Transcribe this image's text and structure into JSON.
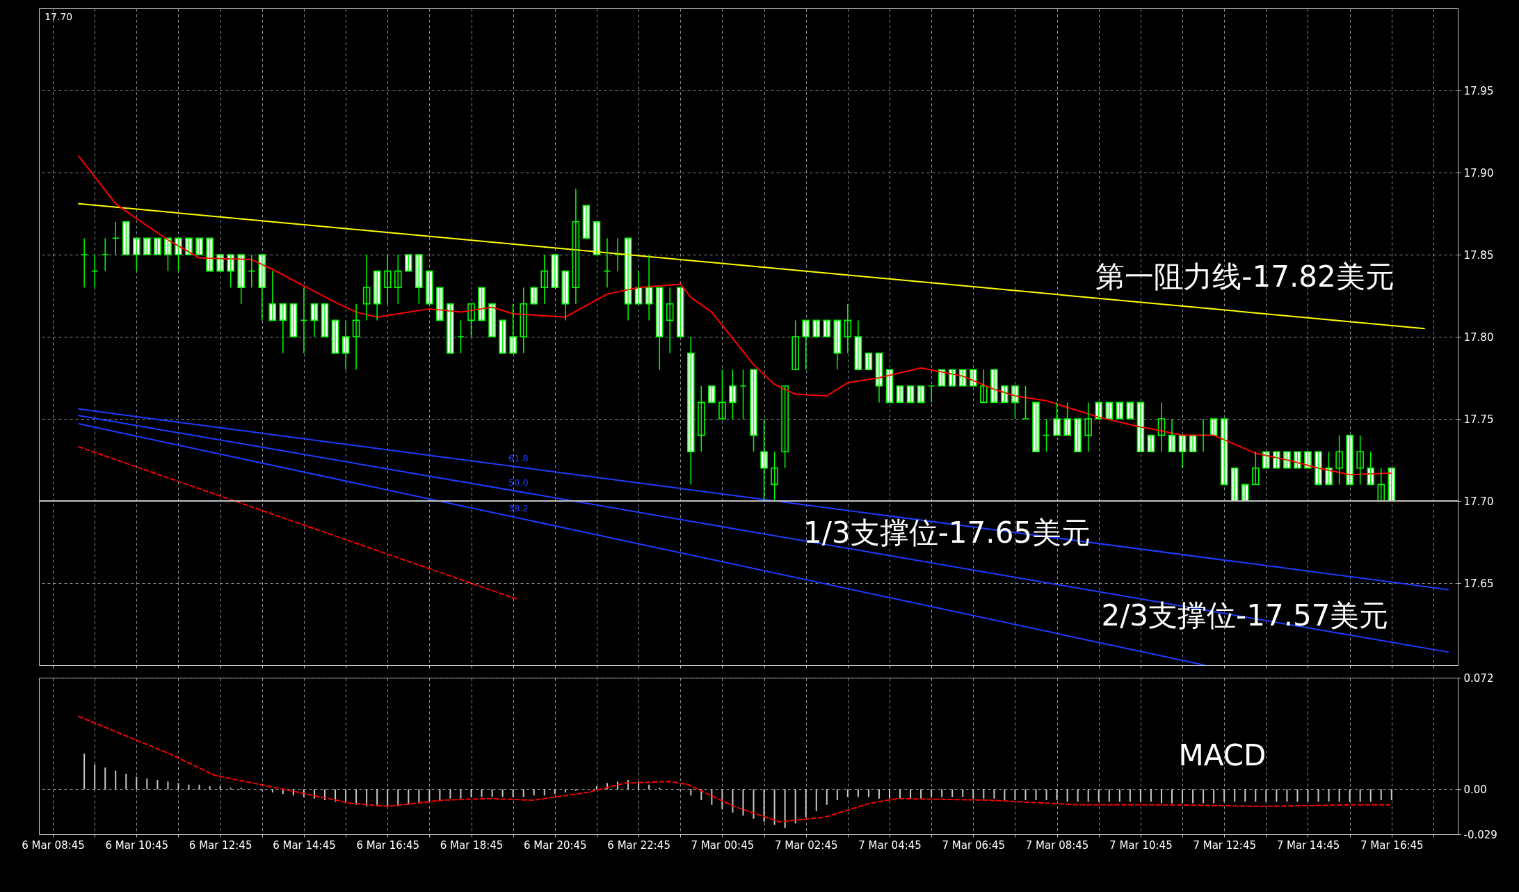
{
  "chart_data": [
    {
      "type": "candlestick",
      "x": [
        "--03-06T09:30",
        "--03-06T09:45",
        "--03-06T10:00",
        "--03-06T10:15",
        "--03-06T10:30",
        "--03-06T10:45",
        "--03-06T11:00",
        "--03-06T11:15",
        "--03-06T11:30",
        "--03-06T11:45",
        "--03-06T12:00",
        "--03-06T12:15",
        "--03-06T12:30",
        "--03-06T12:45",
        "--03-06T13:00",
        "--03-06T13:15",
        "--03-06T13:30",
        "--03-06T13:45",
        "--03-06T14:00",
        "--03-06T14:15",
        "--03-06T14:30",
        "--03-06T14:45",
        "--03-06T15:00",
        "--03-06T15:15",
        "--03-06T15:30",
        "--03-06T15:45",
        "--03-06T16:00",
        "--03-06T16:15",
        "--03-06T16:30",
        "--03-06T16:45",
        "--03-06T17:00",
        "--03-06T17:15",
        "--03-06T17:30",
        "--03-06T17:45",
        "--03-06T18:00",
        "--03-06T18:15",
        "--03-06T18:30",
        "--03-06T18:45",
        "--03-06T19:00",
        "--03-06T19:15",
        "--03-06T19:30",
        "--03-06T19:45",
        "--03-06T20:00",
        "--03-06T20:15",
        "--03-06T20:30",
        "--03-06T20:45",
        "--03-06T21:00",
        "--03-06T21:15",
        "--03-06T21:30",
        "--03-06T21:45",
        "--03-06T22:00",
        "--03-06T22:15",
        "--03-06T22:30",
        "--03-06T22:45",
        "--03-06T23:00",
        "--03-06T23:15",
        "--03-06T23:30",
        "--03-06T23:45",
        "--03-07T00:00",
        "--03-07T00:15",
        "--03-07T00:30",
        "--03-07T00:45",
        "--03-07T01:00",
        "--03-07T01:15",
        "--03-07T01:30",
        "--03-07T01:45",
        "--03-07T02:00",
        "--03-07T02:15",
        "--03-07T02:30",
        "--03-07T02:45",
        "--03-07T03:00",
        "--03-07T03:15",
        "--03-07T03:30",
        "--03-07T03:45",
        "--03-07T04:00",
        "--03-07T04:15",
        "--03-07T04:30",
        "--03-07T04:45",
        "--03-07T05:00",
        "--03-07T05:15",
        "--03-07T05:30",
        "--03-07T05:45",
        "--03-07T06:00",
        "--03-07T06:15",
        "--03-07T06:30",
        "--03-07T06:45",
        "--03-07T07:00",
        "--03-07T07:15",
        "--03-07T07:30",
        "--03-07T07:45",
        "--03-07T08:00",
        "--03-07T08:15",
        "--03-07T08:30",
        "--03-07T08:45",
        "--03-07T09:00",
        "--03-07T09:15",
        "--03-07T09:30",
        "--03-07T09:45",
        "--03-07T10:00",
        "--03-07T10:15",
        "--03-07T10:30",
        "--03-07T10:45",
        "--03-07T11:00",
        "--03-07T11:15",
        "--03-07T11:30",
        "--03-07T11:45",
        "--03-07T12:00",
        "--03-07T12:15",
        "--03-07T12:30",
        "--03-07T12:45",
        "--03-07T13:00",
        "--03-07T13:15",
        "--03-07T13:30",
        "--03-07T13:45",
        "--03-07T14:00",
        "--03-07T14:15",
        "--03-07T14:30",
        "--03-07T14:45",
        "--03-07T15:00",
        "--03-07T15:15",
        "--03-07T15:30",
        "--03-07T15:45",
        "--03-07T16:00",
        "--03-07T16:15",
        "--03-07T16:30",
        "--03-07T16:45"
      ],
      "series": [
        {
          "color": "#00ff00",
          "ohlc": [
            [
              17.85,
              17.86,
              17.83,
              17.85
            ],
            [
              17.84,
              17.85,
              17.83,
              17.84
            ],
            [
              17.85,
              17.86,
              17.84,
              17.85
            ],
            [
              17.86,
              17.87,
              17.85,
              17.86
            ],
            [
              17.87,
              17.87,
              17.85,
              17.85
            ],
            [
              17.86,
              17.86,
              17.84,
              17.85
            ],
            [
              17.86,
              17.86,
              17.85,
              17.85
            ],
            [
              17.86,
              17.86,
              17.85,
              17.85
            ],
            [
              17.86,
              17.86,
              17.84,
              17.85
            ],
            [
              17.86,
              17.86,
              17.84,
              17.85
            ],
            [
              17.86,
              17.86,
              17.85,
              17.85
            ],
            [
              17.86,
              17.86,
              17.85,
              17.85
            ],
            [
              17.86,
              17.86,
              17.84,
              17.84
            ],
            [
              17.85,
              17.85,
              17.84,
              17.84
            ],
            [
              17.85,
              17.85,
              17.83,
              17.84
            ],
            [
              17.85,
              17.85,
              17.82,
              17.83
            ],
            [
              17.84,
              17.85,
              17.83,
              17.84
            ],
            [
              17.85,
              17.85,
              17.81,
              17.83
            ],
            [
              17.82,
              17.84,
              17.81,
              17.81
            ],
            [
              17.82,
              17.82,
              17.79,
              17.81
            ],
            [
              17.82,
              17.82,
              17.8,
              17.8
            ],
            [
              17.81,
              17.83,
              17.79,
              17.81
            ],
            [
              17.82,
              17.82,
              17.8,
              17.81
            ],
            [
              17.82,
              17.82,
              17.8,
              17.8
            ],
            [
              17.81,
              17.81,
              17.79,
              17.79
            ],
            [
              17.8,
              17.81,
              17.78,
              17.79
            ],
            [
              17.8,
              17.82,
              17.78,
              17.81
            ],
            [
              17.82,
              17.85,
              17.81,
              17.83
            ],
            [
              17.84,
              17.84,
              17.81,
              17.82
            ],
            [
              17.83,
              17.85,
              17.82,
              17.84
            ],
            [
              17.83,
              17.85,
              17.82,
              17.84
            ],
            [
              17.85,
              17.85,
              17.84,
              17.84
            ],
            [
              17.85,
              17.85,
              17.82,
              17.83
            ],
            [
              17.84,
              17.84,
              17.82,
              17.82
            ],
            [
              17.83,
              17.83,
              17.81,
              17.81
            ],
            [
              17.82,
              17.82,
              17.79,
              17.79
            ],
            [
              17.8,
              17.81,
              17.79,
              17.8
            ],
            [
              17.81,
              17.82,
              17.8,
              17.82
            ],
            [
              17.83,
              17.83,
              17.81,
              17.81
            ],
            [
              17.82,
              17.82,
              17.8,
              17.8
            ],
            [
              17.81,
              17.81,
              17.79,
              17.79
            ],
            [
              17.8,
              17.82,
              17.79,
              17.79
            ],
            [
              17.8,
              17.83,
              17.79,
              17.82
            ],
            [
              17.83,
              17.83,
              17.82,
              17.82
            ],
            [
              17.83,
              17.85,
              17.82,
              17.84
            ],
            [
              17.85,
              17.85,
              17.83,
              17.83
            ],
            [
              17.84,
              17.84,
              17.81,
              17.82
            ],
            [
              17.83,
              17.89,
              17.82,
              17.87
            ],
            [
              17.88,
              17.88,
              17.86,
              17.86
            ],
            [
              17.87,
              17.87,
              17.85,
              17.85
            ],
            [
              17.84,
              17.86,
              17.83,
              17.84
            ],
            [
              17.85,
              17.86,
              17.84,
              17.85
            ],
            [
              17.86,
              17.86,
              17.81,
              17.82
            ],
            [
              17.83,
              17.84,
              17.82,
              17.82
            ],
            [
              17.83,
              17.85,
              17.81,
              17.82
            ],
            [
              17.83,
              17.83,
              17.78,
              17.8
            ],
            [
              17.81,
              17.83,
              17.79,
              17.82
            ],
            [
              17.83,
              17.83,
              17.8,
              17.8
            ],
            [
              17.79,
              17.8,
              17.71,
              17.73
            ],
            [
              17.74,
              17.77,
              17.73,
              17.76
            ],
            [
              17.77,
              17.77,
              17.76,
              17.76
            ],
            [
              17.75,
              17.78,
              17.75,
              17.76
            ],
            [
              17.77,
              17.78,
              17.75,
              17.76
            ],
            [
              17.77,
              17.78,
              17.75,
              17.77
            ],
            [
              17.78,
              17.78,
              17.73,
              17.74
            ],
            [
              17.73,
              17.75,
              17.7,
              17.72
            ],
            [
              17.71,
              17.73,
              17.7,
              17.72
            ],
            [
              17.73,
              17.77,
              17.72,
              17.77
            ],
            [
              17.78,
              17.81,
              17.78,
              17.8
            ],
            [
              17.81,
              17.81,
              17.78,
              17.8
            ],
            [
              17.81,
              17.81,
              17.8,
              17.8
            ],
            [
              17.81,
              17.81,
              17.8,
              17.8
            ],
            [
              17.81,
              17.81,
              17.78,
              17.79
            ],
            [
              17.8,
              17.82,
              17.79,
              17.81
            ],
            [
              17.8,
              17.81,
              17.78,
              17.78
            ],
            [
              17.79,
              17.79,
              17.78,
              17.78
            ],
            [
              17.79,
              17.79,
              17.76,
              17.77
            ],
            [
              17.78,
              17.78,
              17.76,
              17.76
            ],
            [
              17.77,
              17.77,
              17.76,
              17.76
            ],
            [
              17.77,
              17.77,
              17.76,
              17.76
            ],
            [
              17.77,
              17.77,
              17.76,
              17.76
            ],
            [
              17.77,
              17.77,
              17.76,
              17.77
            ],
            [
              17.78,
              17.78,
              17.77,
              17.77
            ],
            [
              17.78,
              17.78,
              17.77,
              17.77
            ],
            [
              17.78,
              17.78,
              17.77,
              17.77
            ],
            [
              17.78,
              17.78,
              17.77,
              17.77
            ],
            [
              17.76,
              17.78,
              17.76,
              17.77
            ],
            [
              17.78,
              17.78,
              17.76,
              17.76
            ],
            [
              17.77,
              17.77,
              17.76,
              17.76
            ],
            [
              17.77,
              17.77,
              17.75,
              17.76
            ],
            [
              17.75,
              17.77,
              17.75,
              17.75
            ],
            [
              17.76,
              17.76,
              17.73,
              17.73
            ],
            [
              17.74,
              17.75,
              17.73,
              17.74
            ],
            [
              17.75,
              17.76,
              17.74,
              17.74
            ],
            [
              17.75,
              17.76,
              17.74,
              17.74
            ],
            [
              17.75,
              17.75,
              17.73,
              17.73
            ],
            [
              17.74,
              17.76,
              17.73,
              17.75
            ],
            [
              17.76,
              17.76,
              17.75,
              17.75
            ],
            [
              17.76,
              17.76,
              17.75,
              17.75
            ],
            [
              17.76,
              17.76,
              17.75,
              17.75
            ],
            [
              17.76,
              17.76,
              17.75,
              17.75
            ],
            [
              17.76,
              17.76,
              17.73,
              17.73
            ],
            [
              17.74,
              17.74,
              17.73,
              17.73
            ],
            [
              17.74,
              17.76,
              17.73,
              17.75
            ],
            [
              17.74,
              17.75,
              17.73,
              17.73
            ],
            [
              17.74,
              17.74,
              17.72,
              17.73
            ],
            [
              17.74,
              17.74,
              17.73,
              17.73
            ],
            [
              17.74,
              17.75,
              17.73,
              17.74
            ],
            [
              17.75,
              17.75,
              17.74,
              17.74
            ],
            [
              17.75,
              17.75,
              17.71,
              17.71
            ],
            [
              17.72,
              17.72,
              17.7,
              17.7
            ],
            [
              17.71,
              17.71,
              17.7,
              17.7
            ],
            [
              17.71,
              17.73,
              17.71,
              17.72
            ],
            [
              17.73,
              17.73,
              17.72,
              17.72
            ],
            [
              17.73,
              17.73,
              17.72,
              17.72
            ],
            [
              17.73,
              17.73,
              17.72,
              17.72
            ],
            [
              17.73,
              17.73,
              17.72,
              17.72
            ],
            [
              17.73,
              17.73,
              17.72,
              17.72
            ],
            [
              17.73,
              17.73,
              17.71,
              17.71
            ],
            [
              17.72,
              17.73,
              17.71,
              17.71
            ],
            [
              17.72,
              17.74,
              17.71,
              17.73
            ],
            [
              17.74,
              17.74,
              17.71,
              17.71
            ],
            [
              17.72,
              17.74,
              17.71,
              17.73
            ],
            [
              17.72,
              17.73,
              17.71,
              17.71
            ],
            [
              17.7,
              17.72,
              17.7,
              17.71
            ],
            [
              17.72,
              17.72,
              17.7,
              17.7
            ]
          ]
        },
        {
          "type": "line",
          "color": "#ffff00",
          "x": [
            "--03-06T09:22",
            "--03-07T17:32"
          ],
          "values": [
            17.881,
            17.805
          ]
        },
        {
          "type": "line",
          "color": "#ff0000",
          "x": [
            "--03-06T09:22",
            "--03-06T10:15",
            "--03-06T10:45",
            "--03-06T11:30",
            "--03-06T12:15",
            "--03-06T13:30",
            "--03-06T14:00",
            "--03-06T14:45",
            "--03-06T15:30",
            "--03-06T16:00",
            "--03-06T16:30",
            "--03-06T17:00",
            "--03-06T17:45",
            "--03-06T18:30",
            "--03-06T19:15",
            "--03-06T19:45",
            "--03-06T21:00",
            "--03-06T22:00",
            "--03-06T22:45",
            "--03-06T23:45",
            "--03-07T00:00",
            "--03-07T00:30",
            "--03-07T01:00",
            "--03-07T01:30",
            "--03-07T02:00",
            "--03-07T02:30",
            "--03-07T03:15",
            "--03-07T03:45",
            "--03-07T04:30",
            "--03-07T05:30",
            "--03-07T06:30",
            "--03-07T07:15",
            "--03-07T07:45",
            "--03-07T08:30",
            "--03-07T09:15",
            "--03-07T09:45",
            "--03-07T10:45",
            "--03-07T11:00",
            "--03-07T11:45",
            "--03-07T12:30",
            "--03-07T13:30",
            "--03-07T14:15",
            "--03-07T15:00",
            "--03-07T15:45",
            "--03-07T16:45"
          ],
          "values": [
            17.91,
            17.881,
            17.872,
            17.859,
            17.848,
            17.847,
            17.841,
            17.831,
            17.821,
            17.815,
            17.812,
            17.814,
            17.817,
            17.815,
            17.818,
            17.814,
            17.812,
            17.826,
            17.83,
            17.832,
            17.824,
            17.815,
            17.799,
            17.783,
            17.771,
            17.765,
            17.764,
            17.772,
            17.775,
            17.781,
            17.776,
            17.768,
            17.764,
            17.761,
            17.755,
            17.751,
            17.745,
            17.744,
            17.74,
            17.74,
            17.729,
            17.725,
            17.72,
            17.716,
            17.717
          ]
        },
        {
          "type": "line",
          "color": "#ff0000",
          "line_style": "dashed",
          "x": [
            "--03-06T09:22",
            "--03-06T19:52"
          ],
          "values": [
            17.733,
            17.64
          ]
        },
        {
          "type": "line",
          "name": "61.8",
          "color": "#1e3cff",
          "x": [
            "--03-06T09:22",
            "--03-07T18:06"
          ],
          "values": [
            17.756,
            17.646
          ]
        },
        {
          "type": "line",
          "name": "50.0",
          "color": "#1e3cff",
          "x": [
            "--03-06T09:22",
            "--03-07T18:06"
          ],
          "values": [
            17.752,
            17.608
          ]
        },
        {
          "type": "line",
          "name": "38.2",
          "color": "#1e3cff",
          "x": [
            "--03-06T09:22",
            "--03-07T12:17"
          ],
          "values": [
            17.747,
            17.6
          ]
        }
      ],
      "xlim": [
        "--03-06T08:30",
        "--03-07T18:15"
      ],
      "xticks": [
        {
          "value": "--03-06T08:45",
          "label": null
        },
        {
          "value": "--03-06T09:45",
          "label": null
        },
        {
          "value": "--03-06T10:45",
          "label": null
        },
        {
          "value": "--03-06T11:45",
          "label": null
        },
        {
          "value": "--03-06T12:45",
          "label": null
        },
        {
          "value": "--03-06T13:45",
          "label": null
        },
        {
          "value": "--03-06T14:45",
          "label": null
        },
        {
          "value": "--03-06T15:45",
          "label": null
        },
        {
          "value": "--03-06T16:45",
          "label": null
        },
        {
          "value": "--03-06T17:45",
          "label": null
        },
        {
          "value": "--03-06T18:45",
          "label": null
        },
        {
          "value": "--03-06T19:45",
          "label": null
        },
        {
          "value": "--03-06T20:45",
          "label": null
        },
        {
          "value": "--03-06T21:45",
          "label": null
        },
        {
          "value": "--03-06T22:45",
          "label": null
        },
        {
          "value": "--03-06T23:45",
          "label": null
        },
        {
          "value": "--03-07T00:45",
          "label": null
        },
        {
          "value": "--03-07T01:45",
          "label": null
        },
        {
          "value": "--03-07T02:45",
          "label": null
        },
        {
          "value": "--03-07T03:45",
          "label": null
        },
        {
          "value": "--03-07T04:45",
          "label": null
        },
        {
          "value": "--03-07T05:45",
          "label": null
        },
        {
          "value": "--03-07T06:45",
          "label": null
        },
        {
          "value": "--03-07T07:45",
          "label": null
        },
        {
          "value": "--03-07T08:45",
          "label": null
        },
        {
          "value": "--03-07T09:45",
          "label": null
        },
        {
          "value": "--03-07T10:45",
          "label": null
        },
        {
          "value": "--03-07T11:45",
          "label": null
        },
        {
          "value": "--03-07T12:45",
          "label": null
        },
        {
          "value": "--03-07T13:45",
          "label": null
        },
        {
          "value": "--03-07T14:45",
          "label": null
        },
        {
          "value": "--03-07T15:45",
          "label": null
        },
        {
          "value": "--03-07T16:45",
          "label": null
        },
        {
          "value": "--03-07T17:45",
          "label": null
        }
      ],
      "ylim": [
        17.6,
        18.0
      ],
      "yticks": [
        17.65,
        {
          "value": 17.7,
          "label": "17.70"
        },
        17.75,
        {
          "value": 17.8,
          "label": "17.80"
        },
        17.85,
        {
          "value": 17.9,
          "label": "17.90"
        },
        17.95
      ],
      "grid": true,
      "tick_labels": "y",
      "ref_lines": [
        {
          "axis": "y",
          "value": 17.7,
          "color": "#c0c0c0"
        }
      ],
      "annotations": [
        "17.70",
        "第一阻力线-17.82美元",
        "1/3支撑位-17.65美元",
        "2/3支撑位-17.57美元"
      ]
    },
    {
      "type": "bar",
      "title": "MACD",
      "x": [
        "--03-06T09:30",
        "--03-06T09:45",
        "--03-06T10:00",
        "--03-06T10:15",
        "--03-06T10:30",
        "--03-06T10:45",
        "--03-06T11:00",
        "--03-06T11:15",
        "--03-06T11:30",
        "--03-06T11:45",
        "--03-06T12:00",
        "--03-06T12:15",
        "--03-06T12:30",
        "--03-06T12:45",
        "--03-06T13:00",
        "--03-06T13:15",
        "--03-06T13:30",
        "--03-06T13:45",
        "--03-06T14:00",
        "--03-06T14:15",
        "--03-06T14:30",
        "--03-06T14:45",
        "--03-06T15:00",
        "--03-06T15:15",
        "--03-06T15:30",
        "--03-06T15:45",
        "--03-06T16:00",
        "--03-06T16:15",
        "--03-06T16:30",
        "--03-06T16:45",
        "--03-06T17:00",
        "--03-06T17:15",
        "--03-06T17:30",
        "--03-06T17:45",
        "--03-06T18:00",
        "--03-06T18:15",
        "--03-06T18:30",
        "--03-06T18:45",
        "--03-06T19:00",
        "--03-06T19:15",
        "--03-06T19:30",
        "--03-06T19:45",
        "--03-06T20:00",
        "--03-06T20:15",
        "--03-06T20:30",
        "--03-06T20:45",
        "--03-06T21:00",
        "--03-06T21:15",
        "--03-06T21:30",
        "--03-06T21:45",
        "--03-06T22:00",
        "--03-06T22:15",
        "--03-06T22:30",
        "--03-06T22:45",
        "--03-06T23:00",
        "--03-06T23:15",
        "--03-06T23:30",
        "--03-06T23:45",
        "--03-07T00:00",
        "--03-07T00:15",
        "--03-07T00:30",
        "--03-07T00:45",
        "--03-07T01:00",
        "--03-07T01:15",
        "--03-07T01:30",
        "--03-07T01:45",
        "--03-07T02:00",
        "--03-07T02:15",
        "--03-07T02:30",
        "--03-07T02:45",
        "--03-07T03:00",
        "--03-07T03:15",
        "--03-07T03:30",
        "--03-07T03:45",
        "--03-07T04:00",
        "--03-07T04:15",
        "--03-07T04:30",
        "--03-07T04:45",
        "--03-07T05:00",
        "--03-07T05:15",
        "--03-07T05:30",
        "--03-07T05:45",
        "--03-07T06:00",
        "--03-07T06:15",
        "--03-07T06:30",
        "--03-07T06:45",
        "--03-07T07:00",
        "--03-07T07:15",
        "--03-07T07:30",
        "--03-07T07:45",
        "--03-07T08:00",
        "--03-07T08:15",
        "--03-07T08:30",
        "--03-07T08:45",
        "--03-07T09:00",
        "--03-07T09:15",
        "--03-07T09:30",
        "--03-07T09:45",
        "--03-07T10:00",
        "--03-07T10:15",
        "--03-07T10:30",
        "--03-07T10:45",
        "--03-07T11:00",
        "--03-07T11:15",
        "--03-07T11:30",
        "--03-07T11:45",
        "--03-07T12:00",
        "--03-07T12:15",
        "--03-07T12:30",
        "--03-07T12:45",
        "--03-07T13:00",
        "--03-07T13:15",
        "--03-07T13:30",
        "--03-07T13:45",
        "--03-07T14:00",
        "--03-07T14:15",
        "--03-07T14:30",
        "--03-07T14:45",
        "--03-07T15:00",
        "--03-07T15:15",
        "--03-07T15:30",
        "--03-07T15:45",
        "--03-07T16:00",
        "--03-07T16:15",
        "--03-07T16:30",
        "--03-07T16:45"
      ],
      "series": [
        {
          "color": "#c8c8c8",
          "values": [
            0.023,
            0.016,
            0.014,
            0.012,
            0.01,
            0.008,
            0.007,
            0.006,
            0.005,
            0.004,
            0.003,
            0.003,
            0.002,
            0.002,
            0.001,
            0.001,
            0,
            -0.001,
            -0.002,
            -0.003,
            -0.004,
            -0.005,
            -0.006,
            -0.007,
            -0.008,
            -0.009,
            -0.01,
            -0.011,
            -0.011,
            -0.011,
            -0.011,
            -0.01,
            -0.009,
            -0.008,
            -0.007,
            -0.006,
            -0.006,
            -0.005,
            -0.005,
            -0.005,
            -0.005,
            -0.005,
            -0.005,
            -0.004,
            -0.004,
            -0.003,
            -0.002,
            -0.001,
            0,
            0.002,
            0.004,
            0.005,
            0.006,
            0.005,
            0.003,
            0.001,
            0,
            -0.001,
            -0.004,
            -0.007,
            -0.01,
            -0.013,
            -0.015,
            -0.017,
            -0.019,
            -0.021,
            -0.023,
            -0.025,
            -0.022,
            -0.018,
            -0.014,
            -0.01,
            -0.007,
            -0.005,
            -0.005,
            -0.005,
            -0.006,
            -0.006,
            -0.006,
            -0.006,
            -0.006,
            -0.005,
            -0.005,
            -0.005,
            -0.005,
            -0.006,
            -0.006,
            -0.006,
            -0.007,
            -0.007,
            -0.007,
            -0.007,
            -0.007,
            -0.007,
            -0.008,
            -0.008,
            -0.008,
            -0.008,
            -0.008,
            -0.008,
            -0.008,
            -0.008,
            -0.008,
            -0.009,
            -0.009,
            -0.009,
            -0.009,
            -0.009,
            -0.009,
            -0.008,
            -0.008,
            -0.008,
            -0.008,
            -0.008,
            -0.008,
            -0.008,
            -0.008,
            -0.008,
            -0.008,
            -0.008,
            -0.008,
            -0.008,
            -0.008,
            -0.008,
            -0.007,
            -0.007
          ]
        },
        {
          "type": "line",
          "color": "#ff0000",
          "line_style": "dashed",
          "x": [
            "--03-06T09:22",
            "--03-06T11:32",
            "--03-06T12:37",
            "--03-06T13:43",
            "--03-06T14:48",
            "--03-06T15:53",
            "--03-06T16:46",
            "--03-06T18:04",
            "--03-06T19:09",
            "--03-06T20:14",
            "--03-06T21:32",
            "--03-06T22:25",
            "--03-06T23:30",
            "--03-06T23:56",
            "--03-07T01:02",
            "--03-07T02:07",
            "--03-07T03:12",
            "--03-07T04:17",
            "--03-07T04:56",
            "--03-07T07:07",
            "--03-07T09:17",
            "--03-07T11:28",
            "--03-07T13:39",
            "--03-07T15:50",
            "--03-07T16:42"
          ],
          "values": [
            0.047,
            0.023,
            0.009,
            0.003,
            -0.003,
            -0.009,
            -0.011,
            -0.007,
            -0.006,
            -0.007,
            -0.002,
            0.004,
            0.005,
            0.003,
            -0.011,
            -0.021,
            -0.018,
            -0.009,
            -0.006,
            -0.007,
            -0.01,
            -0.01,
            -0.011,
            -0.01,
            -0.01
          ]
        }
      ],
      "xlim": [
        "--03-06T08:30",
        "--03-07T18:15"
      ],
      "xticks": [
        {
          "value": "--03-06T08:45",
          "label": "6 Mar 08:45"
        },
        {
          "value": "--03-06T09:45",
          "label": null
        },
        {
          "value": "--03-06T10:45",
          "label": "6 Mar 10:45"
        },
        {
          "value": "--03-06T11:45",
          "label": null
        },
        {
          "value": "--03-06T12:45",
          "label": "6 Mar 12:45"
        },
        {
          "value": "--03-06T13:45",
          "label": null
        },
        {
          "value": "--03-06T14:45",
          "label": "6 Mar 14:45"
        },
        {
          "value": "--03-06T15:45",
          "label": null
        },
        {
          "value": "--03-06T16:45",
          "label": "6 Mar 16:45"
        },
        {
          "value": "--03-06T17:45",
          "label": null
        },
        {
          "value": "--03-06T18:45",
          "label": "6 Mar 18:45"
        },
        {
          "value": "--03-06T19:45",
          "label": null
        },
        {
          "value": "--03-06T20:45",
          "label": "6 Mar 20:45"
        },
        {
          "value": "--03-06T21:45",
          "label": null
        },
        {
          "value": "--03-06T22:45",
          "label": "6 Mar 22:45"
        },
        {
          "value": "--03-06T23:45",
          "label": null
        },
        {
          "value": "--03-07T00:45",
          "label": "7 Mar 00:45"
        },
        {
          "value": "--03-07T01:45",
          "label": null
        },
        {
          "value": "--03-07T02:45",
          "label": "7 Mar 02:45"
        },
        {
          "value": "--03-07T03:45",
          "label": null
        },
        {
          "value": "--03-07T04:45",
          "label": "7 Mar 04:45"
        },
        {
          "value": "--03-07T05:45",
          "label": null
        },
        {
          "value": "--03-07T06:45",
          "label": "7 Mar 06:45"
        },
        {
          "value": "--03-07T07:45",
          "label": null
        },
        {
          "value": "--03-07T08:45",
          "label": "7 Mar 08:45"
        },
        {
          "value": "--03-07T09:45",
          "label": null
        },
        {
          "value": "--03-07T10:45",
          "label": "7 Mar 10:45"
        },
        {
          "value": "--03-07T11:45",
          "label": null
        },
        {
          "value": "--03-07T12:45",
          "label": "7 Mar 12:45"
        },
        {
          "value": "--03-07T13:45",
          "label": null
        },
        {
          "value": "--03-07T14:45",
          "label": "7 Mar 14:45"
        },
        {
          "value": "--03-07T15:45",
          "label": null
        },
        {
          "value": "--03-07T16:45",
          "label": "7 Mar 16:45"
        },
        {
          "value": "--03-07T17:45",
          "label": null
        }
      ],
      "ylim": [
        -0.029,
        0.072
      ],
      "yticks": [
        -0.029,
        {
          "value": 0,
          "label": "0.00"
        },
        0.072
      ],
      "grid": true
    }
  ]
}
